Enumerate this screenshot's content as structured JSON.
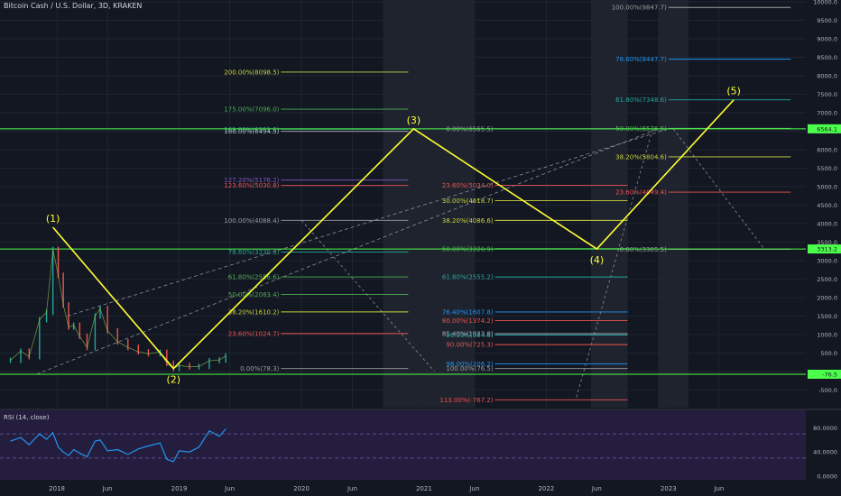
{
  "title": "Bitcoin Cash / U.S. Dollar, 3D, KRAKEN",
  "colors": {
    "background": "#131722",
    "grid": "#1f2433",
    "wave": "#ffff33",
    "green": "#4cff4c",
    "candle_up": "#26a69a",
    "candle_down": "#ef5350",
    "rsi_line": "#2196f3",
    "rsi_bg": "#241d3d",
    "text": "#b2b5be"
  },
  "chart_data": [
    {
      "type": "line",
      "name": "price",
      "ylim": [
        -750,
        10000
      ],
      "y_ticks": [
        "10000.0",
        "9500.0",
        "9000.0",
        "8500.0",
        "8000.0",
        "7500.0",
        "7000.0",
        "6500.0",
        "6000.0",
        "5500.0",
        "5000.0",
        "4500.0",
        "4000.0",
        "3500.0",
        "3000.0",
        "2500.0",
        "2000.0",
        "1500.0",
        "1000.0",
        "500.0",
        "0.0",
        "-500.0"
      ],
      "x_ticks": [
        "2018",
        "Jun",
        "2019",
        "Jun",
        "2020",
        "Jun",
        "2021",
        "Jun",
        "2022",
        "Jun",
        "2023",
        "Jun"
      ],
      "price_labels": [
        {
          "text": "6564.1",
          "value": 6564.1
        },
        {
          "text": "3313.2",
          "value": 3313.2
        },
        {
          "text": "-76.5",
          "value": -76.5
        }
      ],
      "horizontal_lines": [
        {
          "value": 6564.1
        },
        {
          "value": 3313.2
        },
        {
          "value": -76.5
        }
      ],
      "wave_points": [
        {
          "label": "(1)",
          "date": "2017-12-20",
          "value": 3900
        },
        {
          "label": "(2)",
          "date": "2018-12-15",
          "value": 78
        },
        {
          "label": "(3)",
          "date": "2020-12-01",
          "value": 6564
        },
        {
          "label": "(4)",
          "date": "2022-06-01",
          "value": 3313
        },
        {
          "label": "(5)",
          "date": "2023-07-15",
          "value": 7348
        }
      ],
      "fib_sets": [
        {
          "date_start": "2019-11-01",
          "date_end": "2020-11-15",
          "levels": [
            {
              "label": "200.00%(8098.5)",
              "value": 8098.5,
              "color": "#c9d63e"
            },
            {
              "label": "175.00%(7096.0)",
              "value": 7096.0,
              "color": "#4caf50"
            },
            {
              "label": "161.80%(6551.5)",
              "value": 6551.5,
              "color": "#26a69a"
            },
            {
              "label": "160.00%(6494.5)",
              "value": 6494.5,
              "color": "#b2b5be"
            },
            {
              "label": "127.20%(5176.2)",
              "value": 5176.2,
              "color": "#7e57c2"
            },
            {
              "label": "123.60%(5030.8)",
              "value": 5030.8,
              "color": "#ef5350"
            },
            {
              "label": "100.00%(4088.4)",
              "value": 4088.4,
              "color": "#9e9e9e"
            },
            {
              "label": "78.60%(3230.3)",
              "value": 3230.3,
              "color": "#26a69a"
            },
            {
              "label": "61.80%(2556.6)",
              "value": 2556.6,
              "color": "#4caf50"
            },
            {
              "label": "50.00%(2083.4)",
              "value": 2083.4,
              "color": "#4caf50"
            },
            {
              "label": "38.20%(1610.2)",
              "value": 1610.2,
              "color": "#c9d63e"
            },
            {
              "label": "23.60%(1024.7)",
              "value": 1024.7,
              "color": "#ef5350"
            },
            {
              "label": "0.00%(78.3)",
              "value": 78.3,
              "color": "#9e9e9e"
            }
          ]
        },
        {
          "date_start": "2021-08-01",
          "date_end": "2022-09-01",
          "levels": [
            {
              "label": "0.00%(6565.5)",
              "value": 6565.5,
              "color": "#9e9e9e"
            },
            {
              "label": "23.60%(5034.0)",
              "value": 5034.0,
              "color": "#ef5350"
            },
            {
              "label": "30.00%(4618.7)",
              "value": 4618.7,
              "color": "#c9d63e"
            },
            {
              "label": "38.20%(4086.6)",
              "value": 4086.6,
              "color": "#c9d63e"
            },
            {
              "label": "50.00%(3320.9)",
              "value": 3320.9,
              "color": "#4caf50"
            },
            {
              "label": "61.80%(2555.2)",
              "value": 2555.2,
              "color": "#26a69a"
            },
            {
              "label": "76.40%(1607.8)",
              "value": 1607.8,
              "color": "#2196f3"
            },
            {
              "label": "80.00%(1374.2)",
              "value": 1374.2,
              "color": "#ef5350"
            },
            {
              "label": "85.40%(1023.8)",
              "value": 1023.8,
              "color": "#b2b5be"
            },
            {
              "label": "86.00%(984.8)",
              "value": 984.8,
              "color": "#26a69a"
            },
            {
              "label": "90.00%(725.3)",
              "value": 725.3,
              "color": "#ef5350"
            },
            {
              "label": "98.00%(206.2)",
              "value": 206.2,
              "color": "#2196f3"
            },
            {
              "label": "100.00%(76.5)",
              "value": 76.5,
              "color": "#9e9e9e"
            },
            {
              "label": "113.00%(-767.2)",
              "value": -767.2,
              "color": "#ef5350"
            }
          ]
        },
        {
          "date_start": "2023-01-01",
          "date_end": "2024-01-01",
          "levels": [
            {
              "label": "100.00%(9847.7)",
              "value": 9847.7,
              "color": "#9e9e9e"
            },
            {
              "label": "78.60%(8447.7)",
              "value": 8447.7,
              "color": "#2196f3"
            },
            {
              "label": "61.80%(7348.6)",
              "value": 7348.6,
              "color": "#26a69a"
            },
            {
              "label": "50.00%(6576.6)",
              "value": 6576.6,
              "color": "#4caf50"
            },
            {
              "label": "38.20%(5804.6)",
              "value": 5804.6,
              "color": "#c9d63e"
            },
            {
              "label": "23.60%(4849.4)",
              "value": 4849.4,
              "color": "#ef5350"
            },
            {
              "label": "0.00%(3305.5)",
              "value": 3305.5,
              "color": "#9e9e9e"
            }
          ]
        }
      ],
      "channel_lines": [
        {
          "from": {
            "date": "2017-11-01",
            "value": -76
          },
          "to": {
            "date": "2022-12-01",
            "value": 6565
          }
        },
        {
          "from": {
            "date": "2018-02-01",
            "value": 1500
          },
          "to": {
            "date": "2023-01-01",
            "value": 6565
          }
        }
      ],
      "projection_lines": [
        {
          "from": {
            "date": "2020-01-01",
            "value": 4088
          },
          "to": {
            "date": "2021-02-01",
            "value": 0
          }
        },
        {
          "from": {
            "date": "2022-04-01",
            "value": -700
          },
          "to": {
            "date": "2022-11-15",
            "value": 6565
          }
        },
        {
          "from": {
            "date": "2023-01-15",
            "value": 6565
          },
          "to": {
            "date": "2023-10-15",
            "value": 3300
          }
        }
      ],
      "shaded_zones": [
        {
          "date_start": "2020-09-01",
          "date_end": "2021-06-01"
        },
        {
          "date_start": "2022-05-15",
          "date_end": "2022-09-01"
        },
        {
          "date_start": "2022-12-01",
          "date_end": "2023-03-01"
        }
      ],
      "price_series": [
        {
          "date": "2017-08-15",
          "value": 300
        },
        {
          "date": "2017-09-15",
          "value": 550
        },
        {
          "date": "2017-10-10",
          "value": 400
        },
        {
          "date": "2017-11-10",
          "value": 1400
        },
        {
          "date": "2017-12-01",
          "value": 1600
        },
        {
          "date": "2017-12-20",
          "value": 3300
        },
        {
          "date": "2018-01-05",
          "value": 2600
        },
        {
          "date": "2018-01-20",
          "value": 1800
        },
        {
          "date": "2018-02-05",
          "value": 1200
        },
        {
          "date": "2018-02-20",
          "value": 1250
        },
        {
          "date": "2018-03-10",
          "value": 950
        },
        {
          "date": "2018-04-01",
          "value": 650
        },
        {
          "date": "2018-04-25",
          "value": 1500
        },
        {
          "date": "2018-05-10",
          "value": 1700
        },
        {
          "date": "2018-06-01",
          "value": 1100
        },
        {
          "date": "2018-07-01",
          "value": 800
        },
        {
          "date": "2018-08-01",
          "value": 650
        },
        {
          "date": "2018-09-01",
          "value": 530
        },
        {
          "date": "2018-10-01",
          "value": 480
        },
        {
          "date": "2018-11-05",
          "value": 520
        },
        {
          "date": "2018-11-25",
          "value": 220
        },
        {
          "date": "2018-12-15",
          "value": 80
        },
        {
          "date": "2019-01-01",
          "value": 160
        },
        {
          "date": "2019-02-01",
          "value": 125
        },
        {
          "date": "2019-03-01",
          "value": 135
        },
        {
          "date": "2019-04-01",
          "value": 290
        },
        {
          "date": "2019-05-01",
          "value": 310
        },
        {
          "date": "2019-05-20",
          "value": 420
        }
      ]
    },
    {
      "type": "line",
      "name": "RSI (14, close)",
      "label": "RSI (14, close)",
      "ylim": [
        0,
        100
      ],
      "y_ticks": [
        "80.0000",
        "40.0000",
        "0.0000"
      ],
      "bands": [
        30,
        70
      ],
      "series": [
        {
          "date": "2017-08-15",
          "value": 58
        },
        {
          "date": "2017-09-15",
          "value": 64
        },
        {
          "date": "2017-10-10",
          "value": 52
        },
        {
          "date": "2017-11-10",
          "value": 70
        },
        {
          "date": "2017-12-01",
          "value": 61
        },
        {
          "date": "2017-12-20",
          "value": 72
        },
        {
          "date": "2018-01-05",
          "value": 48
        },
        {
          "date": "2018-01-20",
          "value": 40
        },
        {
          "date": "2018-02-05",
          "value": 34
        },
        {
          "date": "2018-02-20",
          "value": 44
        },
        {
          "date": "2018-03-10",
          "value": 38
        },
        {
          "date": "2018-04-01",
          "value": 32
        },
        {
          "date": "2018-04-25",
          "value": 58
        },
        {
          "date": "2018-05-10",
          "value": 60
        },
        {
          "date": "2018-06-01",
          "value": 42
        },
        {
          "date": "2018-07-01",
          "value": 44
        },
        {
          "date": "2018-08-01",
          "value": 36
        },
        {
          "date": "2018-09-01",
          "value": 45
        },
        {
          "date": "2018-10-01",
          "value": 50
        },
        {
          "date": "2018-11-05",
          "value": 55
        },
        {
          "date": "2018-11-25",
          "value": 28
        },
        {
          "date": "2018-12-15",
          "value": 24
        },
        {
          "date": "2019-01-01",
          "value": 42
        },
        {
          "date": "2019-02-01",
          "value": 40
        },
        {
          "date": "2019-03-01",
          "value": 48
        },
        {
          "date": "2019-04-01",
          "value": 75
        },
        {
          "date": "2019-05-01",
          "value": 66
        },
        {
          "date": "2019-05-20",
          "value": 78
        }
      ]
    }
  ]
}
